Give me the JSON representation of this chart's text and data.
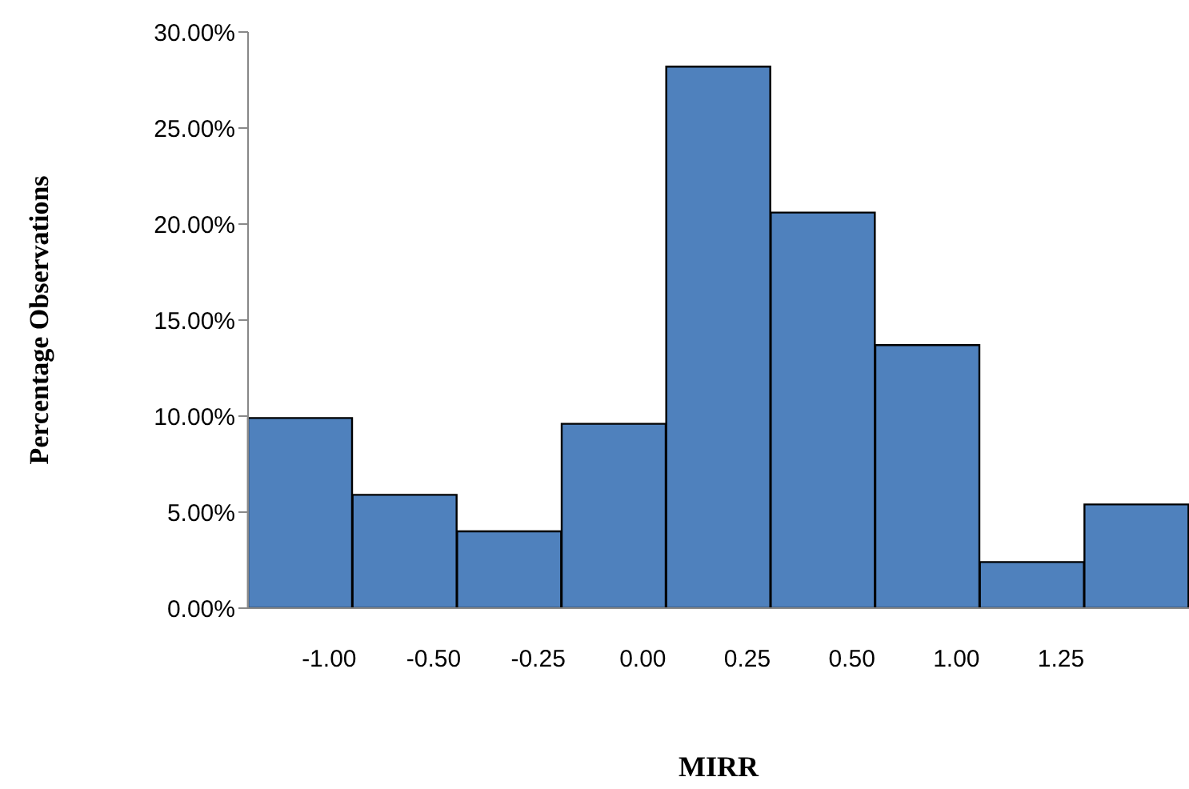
{
  "chart_data": {
    "type": "bar",
    "xlabel": "MIRR",
    "ylabel": "Percentage Observations",
    "categories": [
      "-1.00",
      "-0.50",
      "-0.25",
      "0.00",
      "0.25",
      "0.50",
      "1.00",
      "1.25",
      null
    ],
    "values": [
      9.9,
      5.9,
      4.0,
      9.6,
      28.2,
      20.6,
      13.7,
      2.4,
      5.4
    ],
    "color": "#4f81bd",
    "ylim": [
      0,
      30
    ],
    "yticks": [
      {
        "value": 0,
        "label": "0.00%"
      },
      {
        "value": 5,
        "label": "5.00%"
      },
      {
        "value": 10,
        "label": "10.00%"
      },
      {
        "value": 15,
        "label": "15.00%"
      },
      {
        "value": 20,
        "label": "20.00%"
      },
      {
        "value": 25,
        "label": "25.00%"
      },
      {
        "value": 30,
        "label": "30.00%"
      }
    ],
    "grid": false,
    "legend": false
  }
}
